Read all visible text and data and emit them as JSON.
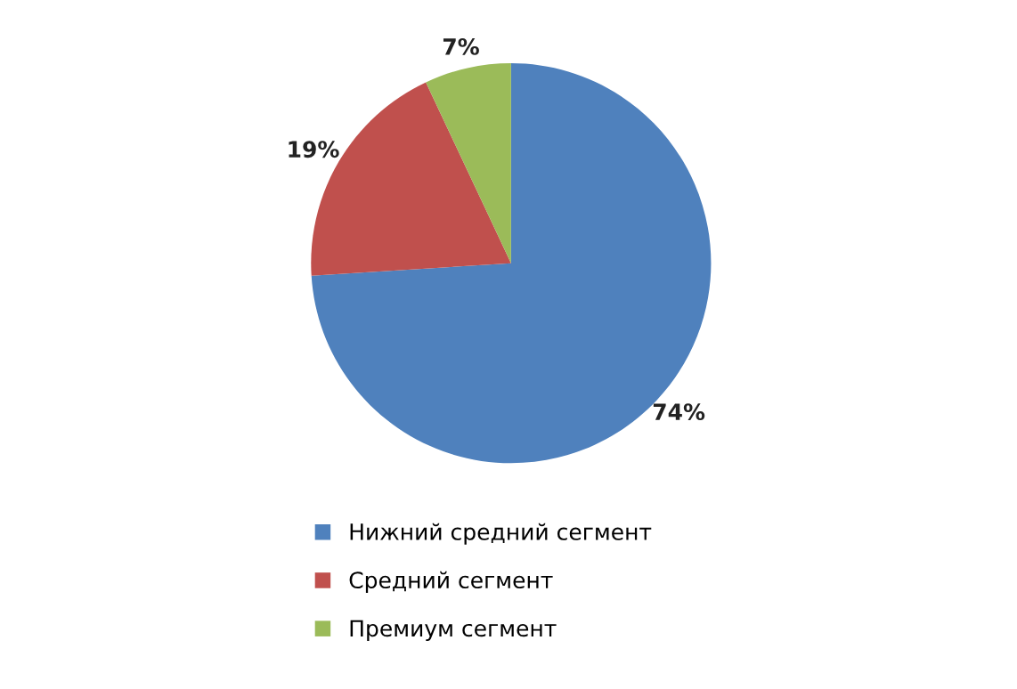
{
  "chart_data": {
    "type": "pie",
    "categories": [
      "Нижний средний сегмент",
      "Средний сегмент",
      "Премиум сегмент"
    ],
    "values": [
      74,
      19,
      7
    ],
    "colors": [
      "#4f81bd",
      "#c0504d",
      "#9bbb59"
    ],
    "value_labels": [
      "74%",
      "19%",
      "7%"
    ],
    "legend": "bottom"
  }
}
